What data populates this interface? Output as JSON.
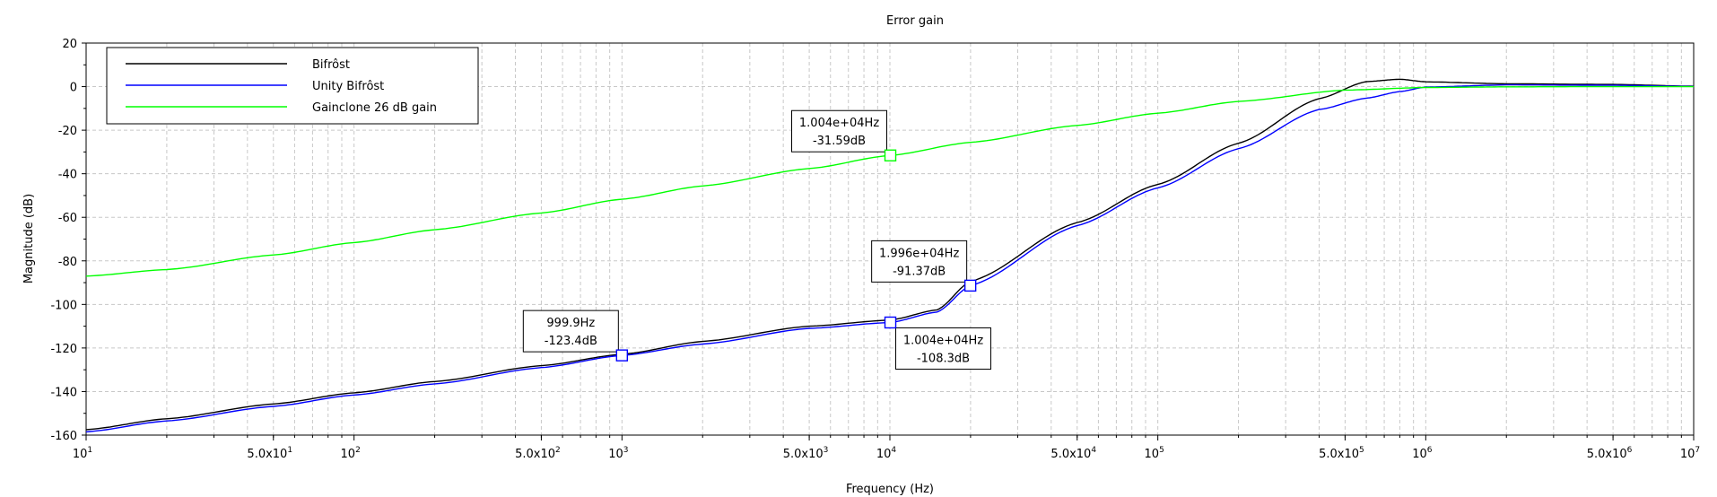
{
  "chart_data": {
    "type": "line",
    "title": "Error gain",
    "xlabel": "Frequency (Hz)",
    "ylabel": "Magnitude (dB)",
    "xscale": "log",
    "xlim": [
      10,
      10000000
    ],
    "ylim": [
      -160,
      20
    ],
    "grid": true,
    "legend_position": "top-left",
    "y_ticks": [
      20,
      0,
      -20,
      -40,
      -60,
      -80,
      -100,
      -120,
      -140,
      -160
    ],
    "y_tick_labels": [
      "20",
      "0",
      "-20",
      "-40",
      "-60",
      "-80",
      "-100",
      "-120",
      "-140",
      "-160"
    ],
    "x_tick_labels": [
      {
        "x": 10,
        "label": "10",
        "exp": "1"
      },
      {
        "x": 50,
        "label": "5.0x10",
        "exp": "1"
      },
      {
        "x": 100,
        "label": "10",
        "exp": "2"
      },
      {
        "x": 500,
        "label": "5.0x10",
        "exp": "2"
      },
      {
        "x": 1000,
        "label": "10",
        "exp": "3"
      },
      {
        "x": 5000,
        "label": "5.0x10",
        "exp": "3"
      },
      {
        "x": 10000,
        "label": "10",
        "exp": "4"
      },
      {
        "x": 50000,
        "label": "5.0x10",
        "exp": "4"
      },
      {
        "x": 100000,
        "label": "10",
        "exp": "5"
      },
      {
        "x": 500000,
        "label": "5.0x10",
        "exp": "5"
      },
      {
        "x": 1000000,
        "label": "10",
        "exp": "6"
      },
      {
        "x": 5000000,
        "label": "5.0x10",
        "exp": "6"
      },
      {
        "x": 10000000,
        "label": "10",
        "exp": "7"
      }
    ],
    "series": [
      {
        "name": "Bifrôst",
        "color": "#000000",
        "x": [
          10,
          20,
          50,
          100,
          200,
          500,
          1000,
          2000,
          5000,
          10000,
          15000,
          20000,
          50000,
          100000,
          200000,
          400000,
          600000,
          800000,
          1000000,
          2000000,
          5000000,
          10000000
        ],
        "y": [
          -157.5,
          -152.5,
          -145.7,
          -140.6,
          -135.4,
          -128.1,
          -122.9,
          -117.0,
          -110.0,
          -107.2,
          -102.5,
          -89.5,
          -62.4,
          -44.9,
          -26.0,
          -5.5,
          2.3,
          3.4,
          2.2,
          1.3,
          1.0,
          0.2
        ]
      },
      {
        "name": "Unity Bifrôst",
        "color": "#0000ff",
        "x": [
          10,
          20,
          50,
          100,
          200,
          500,
          1000,
          2000,
          5000,
          10000,
          15000,
          20000,
          50000,
          100000,
          200000,
          400000,
          600000,
          800000,
          1000000,
          2000000,
          5000000,
          10000000
        ],
        "y": [
          -158.5,
          -153.5,
          -146.8,
          -141.6,
          -136.5,
          -129.0,
          -123.4,
          -118.2,
          -111.0,
          -108.3,
          -103.5,
          -91.4,
          -63.8,
          -46.5,
          -28.5,
          -10.5,
          -5.3,
          -2.3,
          -0.2,
          0.8,
          0.6,
          0.1
        ]
      },
      {
        "name": "Gainclone 26 dB gain",
        "color": "#00ff00",
        "x": [
          10,
          20,
          50,
          100,
          200,
          500,
          1000,
          2000,
          5000,
          10000,
          20000,
          50000,
          100000,
          200000,
          500000,
          1000000,
          2000000,
          5000000,
          10000000
        ],
        "y": [
          -87.0,
          -84.0,
          -77.3,
          -71.6,
          -65.7,
          -58.0,
          -51.7,
          -45.6,
          -37.6,
          -31.6,
          -25.6,
          -17.8,
          -12.2,
          -6.8,
          -1.6,
          -0.4,
          -0.1,
          0.0,
          0.0
        ]
      }
    ],
    "annotations": [
      {
        "x": 999.9,
        "y": -123.4,
        "series": 1,
        "line1": "999.9Hz",
        "line2": "-123.4dB",
        "side": "above-left"
      },
      {
        "x": 10040,
        "y": -31.59,
        "series": 2,
        "line1": "1.004e+04Hz",
        "line2": "-31.59dB",
        "side": "above-left"
      },
      {
        "x": 19960,
        "y": -91.37,
        "series": 1,
        "line1": "1.996e+04Hz",
        "line2": "-91.37dB",
        "side": "above-left"
      },
      {
        "x": 10040,
        "y": -108.3,
        "series": 1,
        "line1": "1.004e+04Hz",
        "line2": "-108.3dB",
        "side": "below-right"
      }
    ]
  }
}
